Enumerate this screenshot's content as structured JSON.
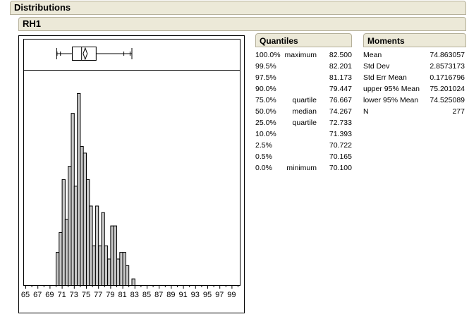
{
  "outline": {
    "title": "Distributions",
    "variable": "RH1"
  },
  "quantiles": {
    "title": "Quantiles",
    "rows": [
      {
        "pct": "100.0%",
        "label": "maximum",
        "value": "82.500"
      },
      {
        "pct": "99.5%",
        "label": "",
        "value": "82.201"
      },
      {
        "pct": "97.5%",
        "label": "",
        "value": "81.173"
      },
      {
        "pct": "90.0%",
        "label": "",
        "value": "79.447"
      },
      {
        "pct": "75.0%",
        "label": "quartile",
        "value": "76.667"
      },
      {
        "pct": "50.0%",
        "label": "median",
        "value": "74.267"
      },
      {
        "pct": "25.0%",
        "label": "quartile",
        "value": "72.733"
      },
      {
        "pct": "10.0%",
        "label": "",
        "value": "71.393"
      },
      {
        "pct": "2.5%",
        "label": "",
        "value": "70.722"
      },
      {
        "pct": "0.5%",
        "label": "",
        "value": "70.165"
      },
      {
        "pct": "0.0%",
        "label": "minimum",
        "value": "70.100"
      }
    ]
  },
  "moments": {
    "title": "Moments",
    "rows": [
      {
        "label": "Mean",
        "value": "74.863057"
      },
      {
        "label": "Std Dev",
        "value": "2.8573173"
      },
      {
        "label": "Std Err Mean",
        "value": "0.1716796"
      },
      {
        "label": "upper 95% Mean",
        "value": "75.201024"
      },
      {
        "label": "lower 95% Mean",
        "value": "74.525089"
      },
      {
        "label": "N",
        "value": "277"
      }
    ]
  },
  "chart_data": {
    "type": "bar",
    "orientation": "histogram",
    "bin_width": 0.5,
    "bin_starts": [
      70,
      70.5,
      71,
      71.5,
      72,
      72.5,
      73,
      73.5,
      74,
      74.5,
      75,
      75.5,
      76,
      76.5,
      77,
      77.5,
      78,
      78.5,
      79,
      79.5,
      80,
      80.5,
      81,
      81.5,
      82,
      82.5
    ],
    "counts": [
      5,
      8,
      16,
      10,
      18,
      26,
      15,
      29,
      21,
      20,
      16,
      12,
      6,
      12,
      6,
      11,
      6,
      4,
      9,
      9,
      4,
      5,
      5,
      3,
      0,
      1
    ],
    "xlim": [
      65,
      100
    ],
    "tick_labels": [
      "65",
      "67",
      "69",
      "71",
      "73",
      "75",
      "77",
      "79",
      "81",
      "83",
      "85",
      "87",
      "89",
      "91",
      "93",
      "95",
      "97",
      "99"
    ],
    "bar_color": "#c8c8c8",
    "boxplot": {
      "min": 70.1,
      "q1": 72.733,
      "median": 74.267,
      "q3": 76.667,
      "max": 82.5,
      "mean": 74.863057,
      "ci_low": 74.525089,
      "ci_high": 75.201024,
      "quantile_ticks": [
        70.165,
        70.722,
        81.173,
        82.201
      ]
    }
  }
}
